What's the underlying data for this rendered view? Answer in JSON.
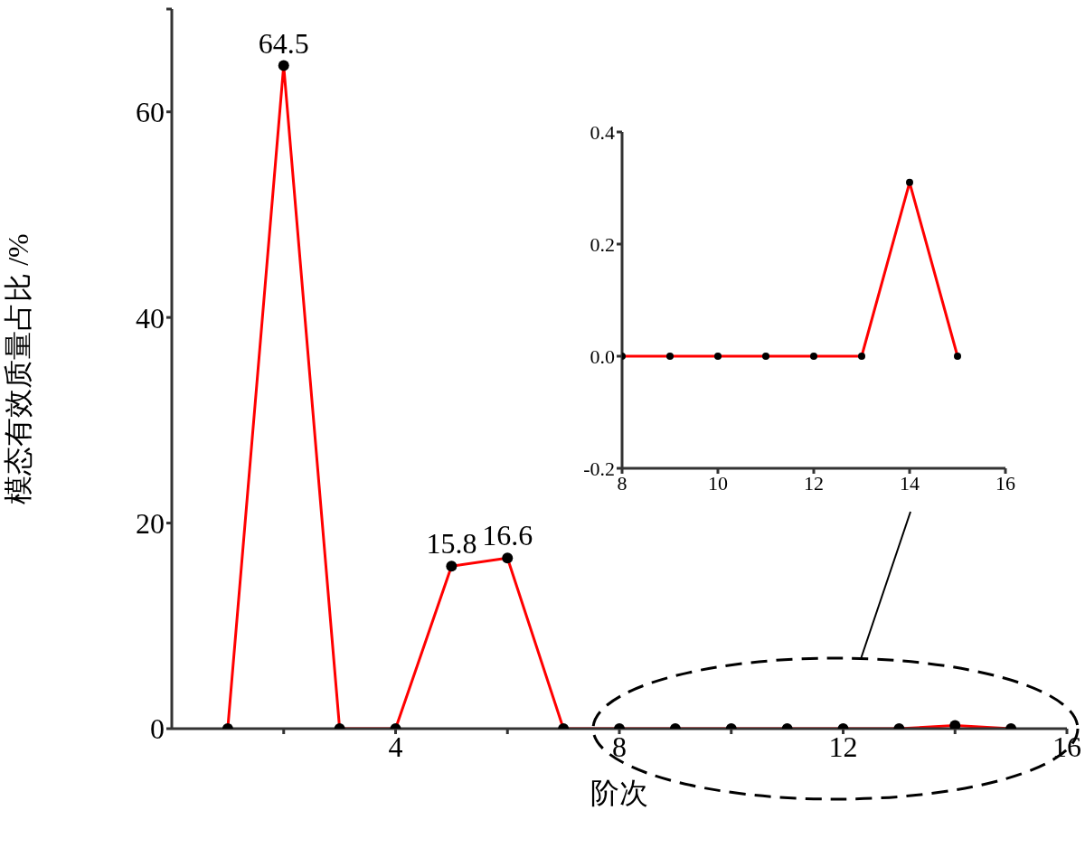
{
  "chart_data": [
    {
      "type": "line",
      "xlabel": "阶次",
      "ylabel": "模态有效质量占比 /%",
      "x": [
        1,
        2,
        3,
        4,
        5,
        6,
        7,
        8,
        9,
        10,
        11,
        12,
        13,
        14,
        15
      ],
      "series": [
        {
          "color": "#ff0000",
          "values": [
            0,
            64.5,
            0,
            0,
            15.8,
            16.6,
            0,
            0,
            0,
            0,
            0,
            0,
            0,
            0.31,
            0
          ],
          "value_labels": [
            null,
            "64.5",
            null,
            null,
            "15.8",
            "16.6",
            null,
            null,
            null,
            null,
            null,
            null,
            null,
            null,
            null
          ]
        }
      ],
      "xlim": [
        0,
        16
      ],
      "xticks": [
        {
          "value": 2,
          "label": null
        },
        4,
        {
          "value": 6,
          "label": null
        },
        8,
        {
          "value": 10,
          "label": null
        },
        12,
        {
          "value": 14,
          "label": null
        },
        16
      ],
      "ylim": [
        0,
        70
      ],
      "yticks": [
        0,
        20,
        40,
        60,
        {
          "value": 70,
          "label": null
        }
      ],
      "marker": "circle",
      "line_style": "solid",
      "grid": false,
      "legend": false
    },
    {
      "type": "line",
      "x": [
        8,
        9,
        10,
        11,
        12,
        13,
        14,
        15
      ],
      "series": [
        {
          "color": "#ff0000",
          "values": [
            0,
            0,
            0,
            0,
            0,
            0,
            0.31,
            0
          ]
        }
      ],
      "xlim": [
        8,
        16
      ],
      "xticks": [
        8,
        10,
        12,
        14,
        16
      ],
      "ylim": [
        -0.2,
        0.4
      ],
      "yticks": [
        {
          "value": -0.2,
          "label": "-0.2"
        },
        {
          "value": 0,
          "label": "0.0"
        },
        {
          "value": 0.2,
          "label": "0.2"
        },
        {
          "value": 0.4,
          "label": "0.4"
        }
      ],
      "marker": "circle",
      "line_style": "solid",
      "grid": false,
      "legend": false
    }
  ]
}
